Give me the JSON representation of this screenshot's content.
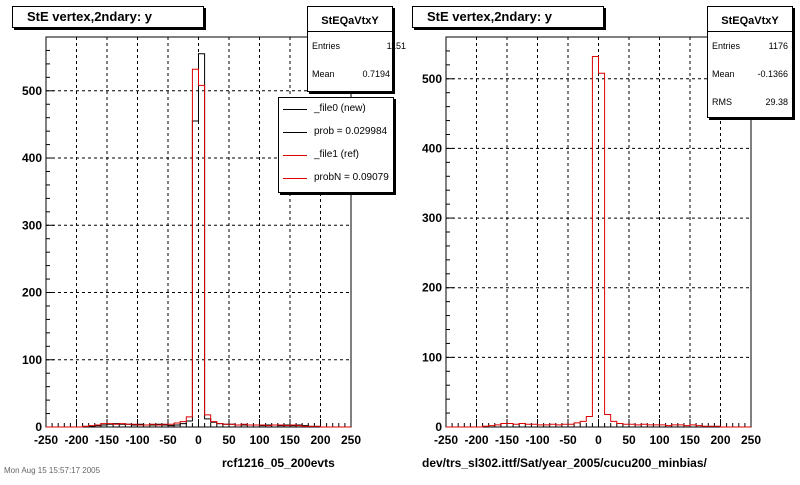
{
  "panels": [
    {
      "title": "StE  vertex,2ndary: y",
      "stats": {
        "name": "StEQaVtxY",
        "rows": [
          {
            "label": "Entries",
            "value": "1151"
          },
          {
            "label": "Mean",
            "value": "0.7194"
          }
        ]
      },
      "legend": [
        {
          "label": "_file0 (new)",
          "color": "#000000"
        },
        {
          "label": "prob = 0.029984",
          "color": "#000000"
        },
        {
          "label": "_file1 (ref)",
          "color": "#dd0000"
        },
        {
          "label": "probN = 0.09079",
          "color": "#dd0000"
        }
      ],
      "footer": "rcf1216_05_200evts"
    },
    {
      "title": "StE  vertex,2ndary: y",
      "stats": {
        "name": "StEQaVtxY",
        "rows": [
          {
            "label": "Entries",
            "value": "1176"
          },
          {
            "label": "Mean",
            "value": "-0.1366"
          },
          {
            "label": "RMS",
            "value": "29.38"
          }
        ]
      },
      "footer": "dev/trs_sl302.ittf/Sat/year_2005/cucu200_minbias/"
    }
  ],
  "corner_text": "Mon Aug 15 15:57:17 2005",
  "chart_data": [
    {
      "type": "line",
      "style": "step histogram",
      "xlim": [
        -250,
        250
      ],
      "ylim": [
        0,
        580
      ],
      "xticks": [
        -250,
        -200,
        -150,
        -100,
        -50,
        0,
        50,
        100,
        150,
        200,
        250
      ],
      "yticks": [
        0,
        100,
        200,
        300,
        400,
        500
      ],
      "grid": true,
      "legend_position": "top-right",
      "bin_width": 10,
      "series": [
        {
          "name": "_file0 (new)",
          "color": "#000000",
          "edges": [
            -250,
            -240,
            -230,
            -220,
            -210,
            -200,
            -190,
            -180,
            -170,
            -160,
            -150,
            -140,
            -130,
            -120,
            -110,
            -100,
            -90,
            -80,
            -70,
            -60,
            -50,
            -40,
            -30,
            -20,
            -10,
            0,
            10,
            20,
            30,
            40,
            50,
            60,
            70,
            80,
            90,
            100,
            110,
            120,
            130,
            140,
            150,
            160,
            170,
            180,
            190,
            200,
            210,
            220,
            230,
            240,
            250
          ],
          "values": [
            0,
            0,
            0,
            0,
            0,
            0,
            1,
            1,
            2,
            3,
            4,
            5,
            4,
            4,
            3,
            4,
            3,
            3,
            4,
            3,
            2,
            3,
            5,
            9,
            455,
            555,
            12,
            7,
            5,
            4,
            4,
            3,
            3,
            3,
            3,
            2,
            3,
            3,
            2,
            3,
            2,
            3,
            2,
            1,
            1,
            0,
            0,
            0,
            0,
            0
          ]
        },
        {
          "name": "_file1 (ref)",
          "color": "#dd0000",
          "edges": [
            -250,
            -240,
            -230,
            -220,
            -210,
            -200,
            -190,
            -180,
            -170,
            -160,
            -150,
            -140,
            -130,
            -120,
            -110,
            -100,
            -90,
            -80,
            -70,
            -60,
            -50,
            -40,
            -30,
            -20,
            -10,
            0,
            10,
            20,
            30,
            40,
            50,
            60,
            70,
            80,
            90,
            100,
            110,
            120,
            130,
            140,
            150,
            160,
            170,
            180,
            190,
            200,
            210,
            220,
            230,
            240,
            250
          ],
          "values": [
            0,
            0,
            0,
            0,
            0,
            0,
            1,
            2,
            3,
            5,
            5,
            4,
            5,
            4,
            4,
            3,
            3,
            4,
            3,
            4,
            4,
            6,
            8,
            15,
            532,
            508,
            18,
            8,
            5,
            4,
            4,
            3,
            4,
            3,
            3,
            3,
            2,
            3,
            3,
            2,
            3,
            2,
            1,
            1,
            1,
            0,
            0,
            0,
            0,
            0
          ]
        }
      ]
    },
    {
      "type": "line",
      "style": "step histogram",
      "xlim": [
        -250,
        250
      ],
      "ylim": [
        0,
        560
      ],
      "xticks": [
        -250,
        -200,
        -150,
        -100,
        -50,
        0,
        50,
        100,
        150,
        200,
        250
      ],
      "yticks": [
        0,
        100,
        200,
        300,
        400,
        500
      ],
      "grid": true,
      "bin_width": 10,
      "series": [
        {
          "name": "_file1 (ref)",
          "color": "#dd0000",
          "edges": [
            -250,
            -240,
            -230,
            -220,
            -210,
            -200,
            -190,
            -180,
            -170,
            -160,
            -150,
            -140,
            -130,
            -120,
            -110,
            -100,
            -90,
            -80,
            -70,
            -60,
            -50,
            -40,
            -30,
            -20,
            -10,
            0,
            10,
            20,
            30,
            40,
            50,
            60,
            70,
            80,
            90,
            100,
            110,
            120,
            130,
            140,
            150,
            160,
            170,
            180,
            190,
            200,
            210,
            220,
            230,
            240,
            250
          ],
          "values": [
            0,
            0,
            0,
            0,
            0,
            0,
            1,
            2,
            3,
            5,
            5,
            4,
            5,
            4,
            4,
            3,
            3,
            4,
            3,
            4,
            4,
            6,
            8,
            15,
            532,
            508,
            18,
            8,
            5,
            4,
            4,
            3,
            4,
            3,
            3,
            3,
            2,
            3,
            3,
            2,
            3,
            2,
            1,
            1,
            1,
            0,
            0,
            0,
            0,
            0
          ]
        }
      ]
    }
  ]
}
